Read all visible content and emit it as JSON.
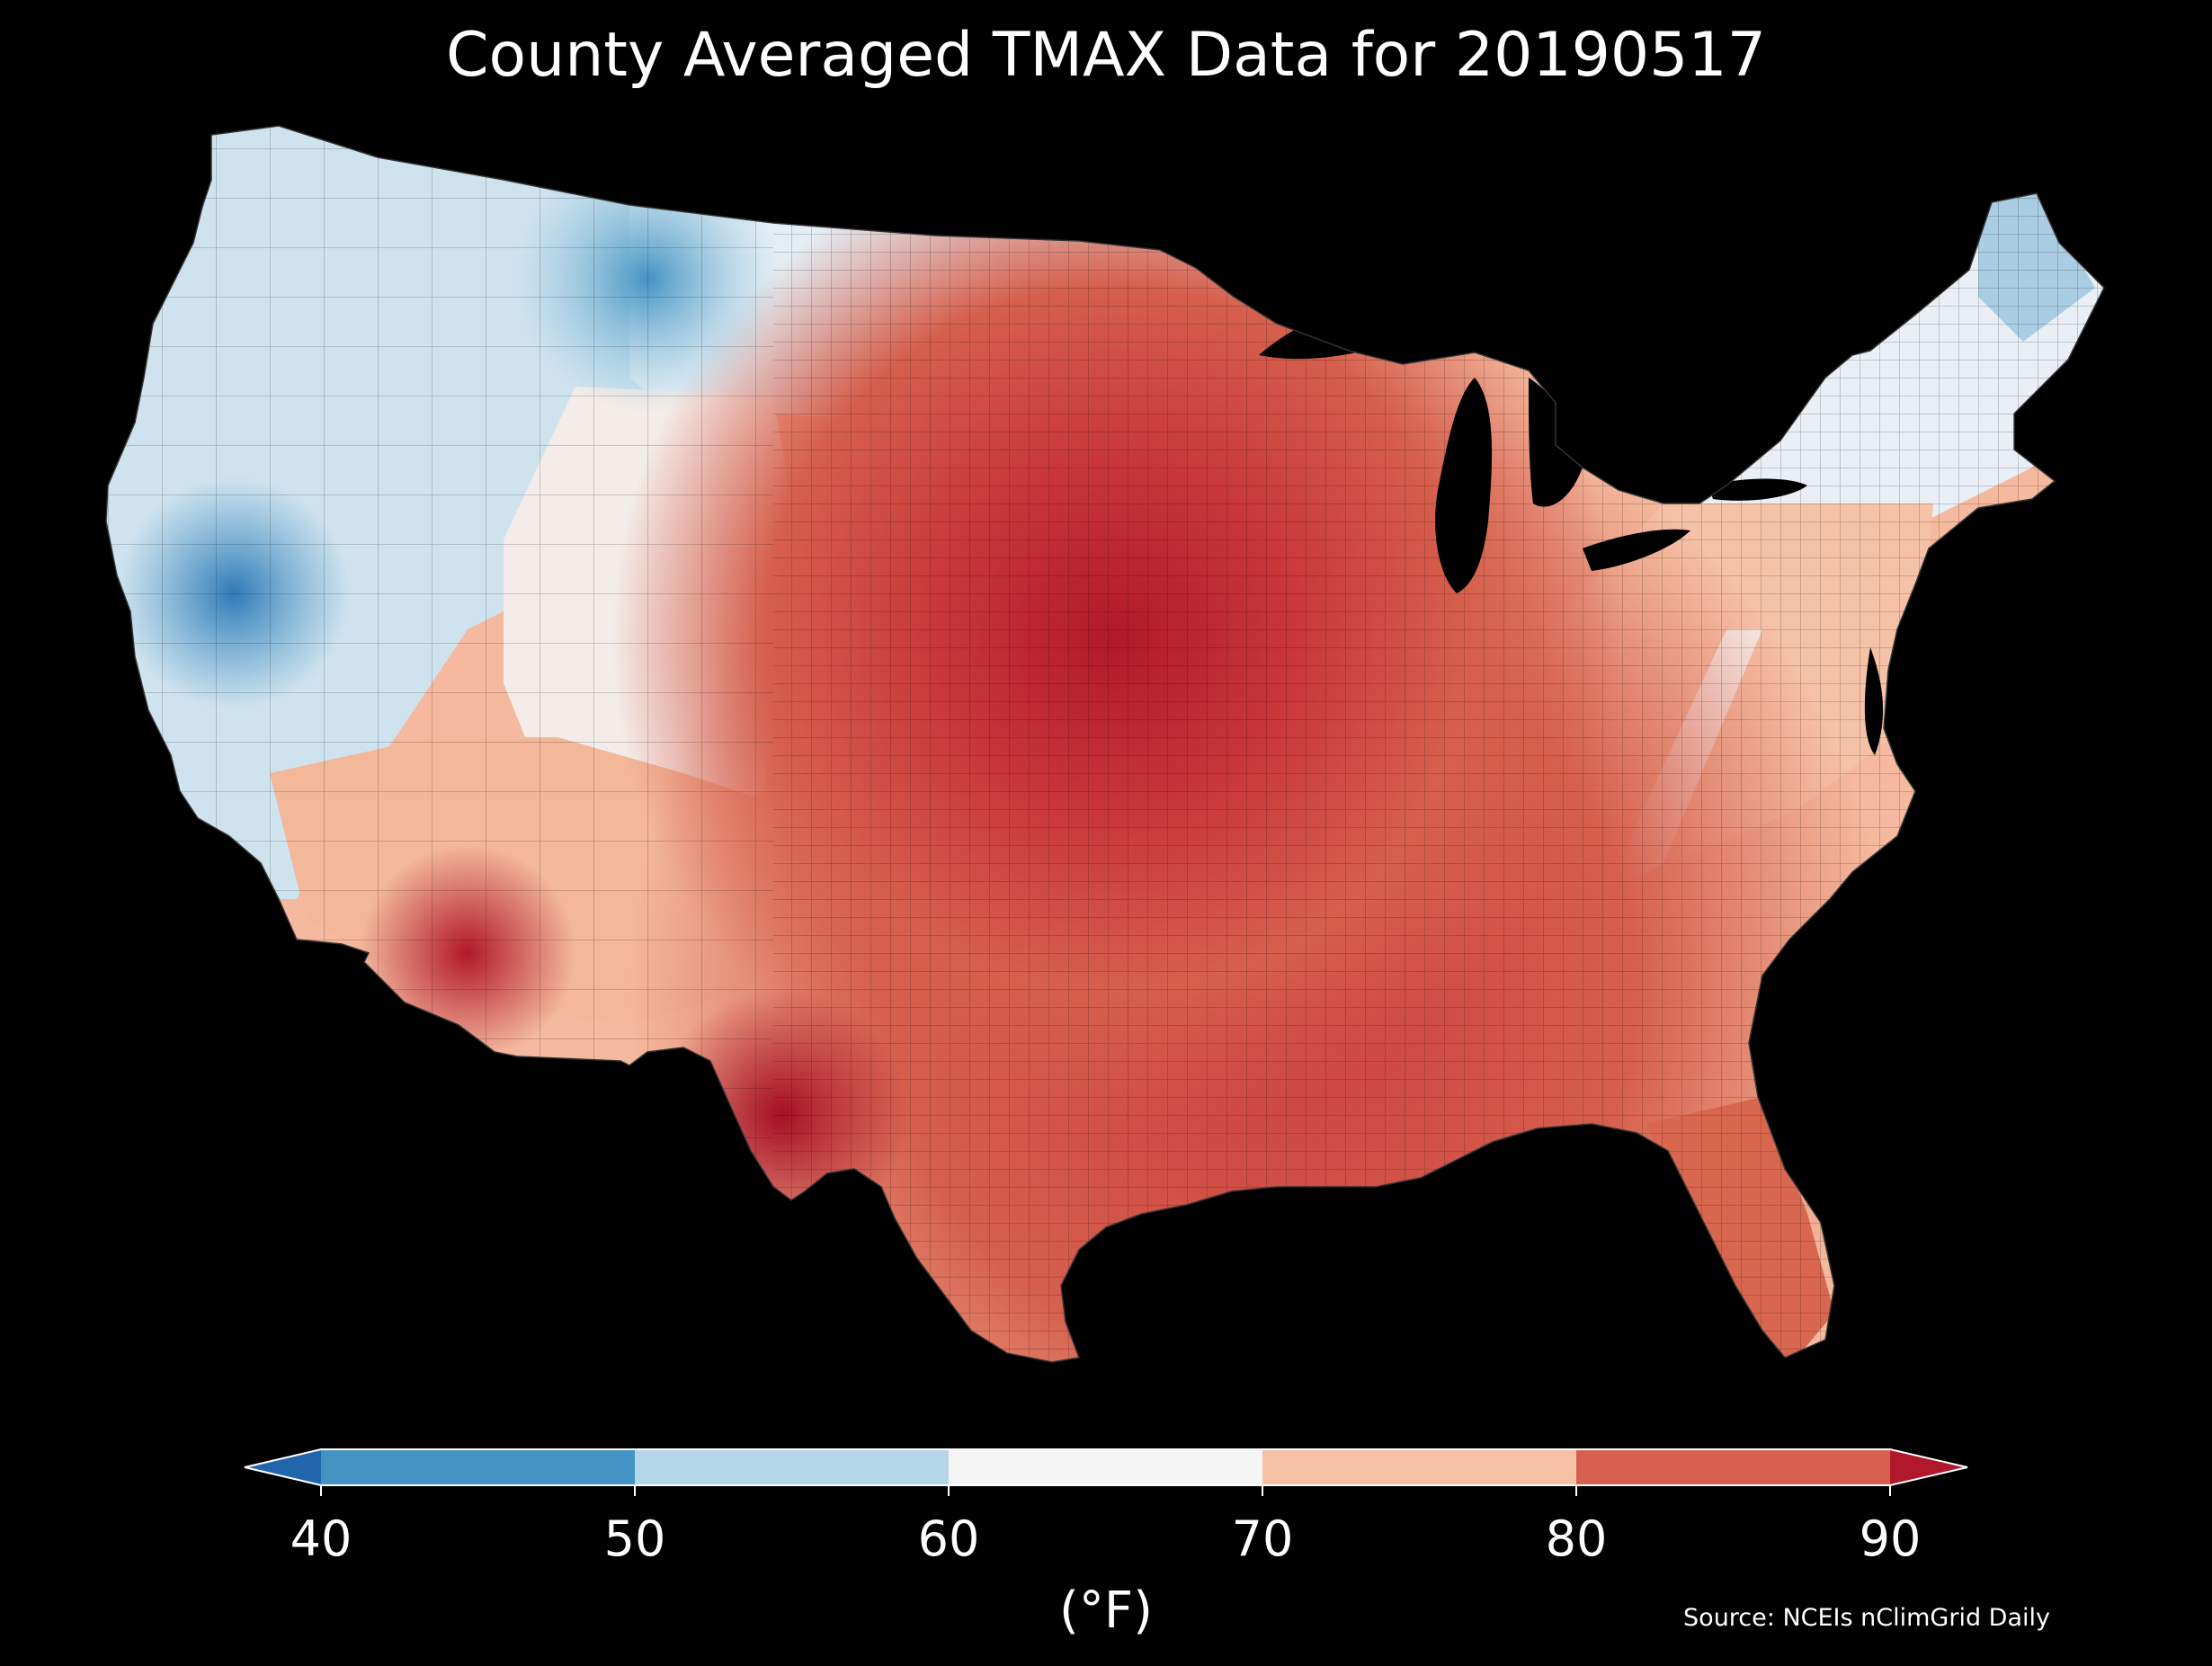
{
  "title": "County Averaged TMAX Data for 20190517",
  "colorbar": {
    "ticks": [
      "40",
      "50",
      "60",
      "70",
      "80",
      "90"
    ],
    "unit": "(°F)",
    "bins": [
      {
        "range": "<40",
        "color": "#2166ac"
      },
      {
        "range": "40-50",
        "color": "#4393c3"
      },
      {
        "range": "50-60",
        "color": "#b5d6e9"
      },
      {
        "range": "60-70",
        "color": "#f5f5f5"
      },
      {
        "range": "70-80",
        "color": "#f6c2a7"
      },
      {
        "range": "80-90",
        "color": "#d6604d"
      },
      {
        "range": ">90",
        "color": "#b2182b"
      }
    ],
    "extend": "both"
  },
  "source": "Source: NCEIs nClimGrid Daily",
  "map": {
    "region": "Contiguous United States",
    "units": "county",
    "variable": "TMAX",
    "date": "20190517"
  }
}
